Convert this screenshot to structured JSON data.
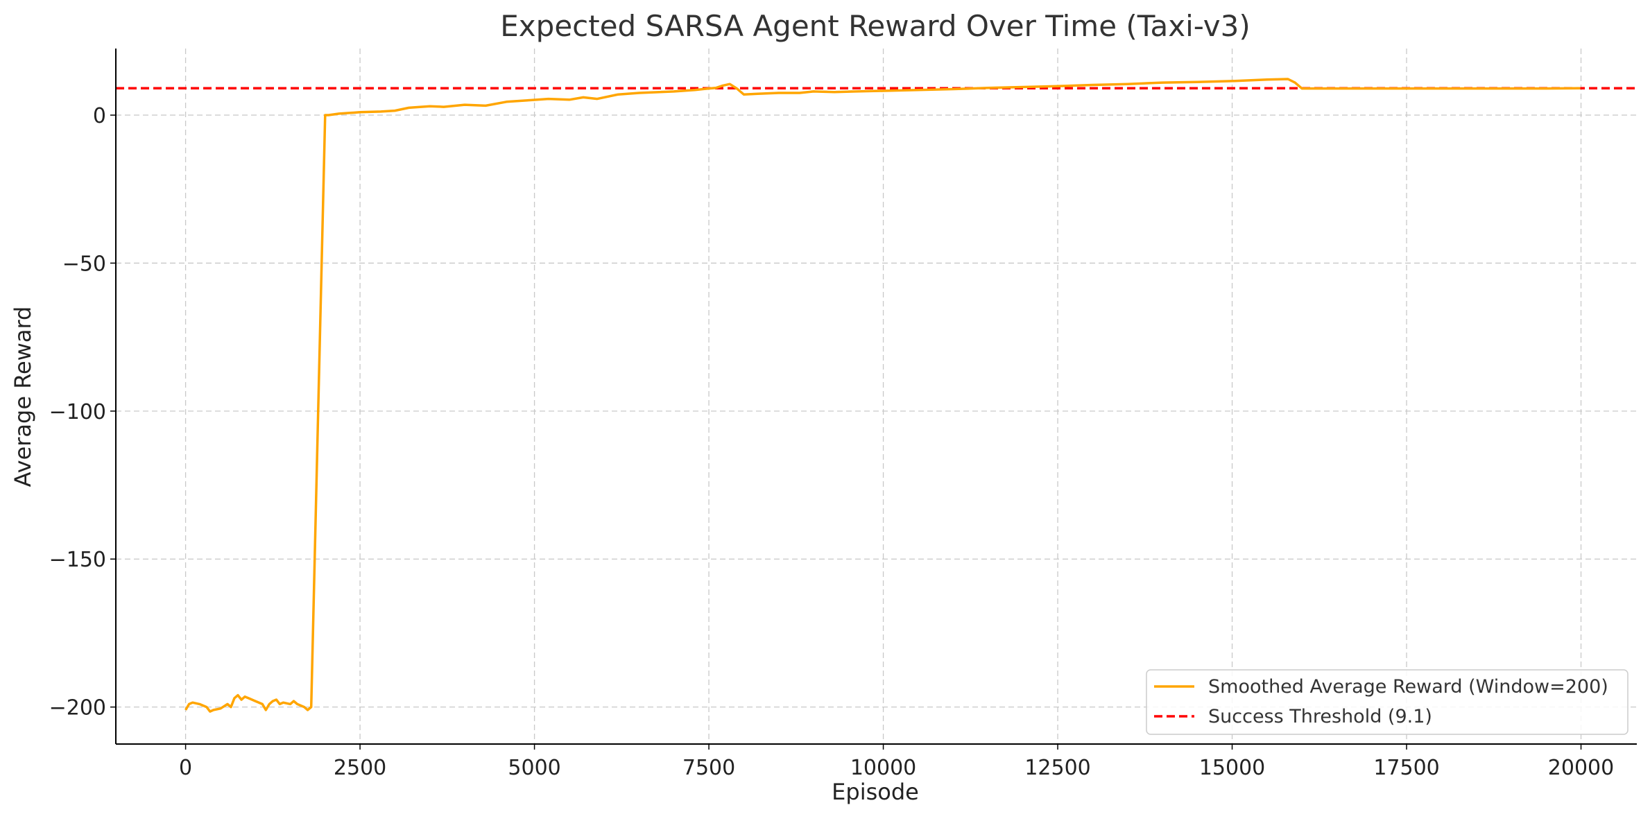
{
  "chart_data": {
    "type": "line",
    "title": "Expected SARSA Agent Reward Over Time (Taxi-v3)",
    "xlabel": "Episode",
    "ylabel": "Average Reward",
    "xlim": [
      -1000,
      20800
    ],
    "ylim": [
      -212.5,
      22.5
    ],
    "xticks": [
      0,
      2500,
      5000,
      7500,
      10000,
      12500,
      15000,
      17500,
      20000
    ],
    "xtick_labels": [
      "0",
      "2500",
      "5000",
      "7500",
      "10000",
      "12500",
      "15000",
      "17500",
      "20000"
    ],
    "yticks": [
      0,
      -50,
      -100,
      -150,
      -200
    ],
    "ytick_labels": [
      "0",
      "−50",
      "−100",
      "−150",
      "−200"
    ],
    "grid": true,
    "legend_position": "bottom-right",
    "series": [
      {
        "name": "Smoothed Average Reward (Window=200)",
        "color": "#FFA500",
        "style": "solid",
        "x": [
          0,
          50,
          100,
          200,
          300,
          350,
          400,
          500,
          600,
          650,
          700,
          750,
          800,
          850,
          900,
          1000,
          1100,
          1150,
          1200,
          1250,
          1300,
          1350,
          1400,
          1500,
          1550,
          1600,
          1650,
          1700,
          1750,
          1800,
          2000,
          2050,
          2200,
          2500,
          2800,
          3000,
          3200,
          3500,
          3700,
          4000,
          4300,
          4600,
          4900,
          5200,
          5500,
          5700,
          5900,
          6200,
          6500,
          7000,
          7300,
          7500,
          7600,
          7700,
          7800,
          7900,
          8000,
          8200,
          8500,
          8800,
          9000,
          9300,
          9600,
          10000,
          10500,
          11000,
          11500,
          12000,
          12500,
          13000,
          13500,
          14000,
          14500,
          15000,
          15500,
          15800,
          15900,
          16000,
          16500,
          17000,
          17500,
          18000,
          18500,
          19000,
          19500,
          19990
        ],
        "y": [
          -201,
          -199,
          -198.5,
          -199,
          -200,
          -201.5,
          -201,
          -200.5,
          -199,
          -200,
          -197,
          -196,
          -197.5,
          -196.5,
          -197,
          -198,
          -199,
          -201,
          -199,
          -198,
          -197.5,
          -199,
          -198.5,
          -199,
          -198,
          -199,
          -199.5,
          -200,
          -201,
          -200,
          0,
          0,
          0.5,
          1,
          1.2,
          1.5,
          2.5,
          3,
          2.8,
          3.5,
          3.2,
          4.5,
          5,
          5.5,
          5.2,
          6,
          5.5,
          7,
          7.5,
          8,
          8.5,
          9,
          9.2,
          10,
          10.5,
          9,
          7,
          7.2,
          7.5,
          7.5,
          8,
          7.8,
          8,
          8.2,
          8.5,
          8.8,
          9.2,
          9.5,
          9.8,
          10.2,
          10.5,
          11,
          11.2,
          11.5,
          12,
          12.2,
          11,
          9,
          9,
          9,
          9,
          9,
          9,
          9,
          9,
          9.1
        ]
      },
      {
        "name": "Success Threshold (9.1)",
        "color": "#FF0000",
        "style": "dashed",
        "y_constant": 9.1
      }
    ]
  }
}
